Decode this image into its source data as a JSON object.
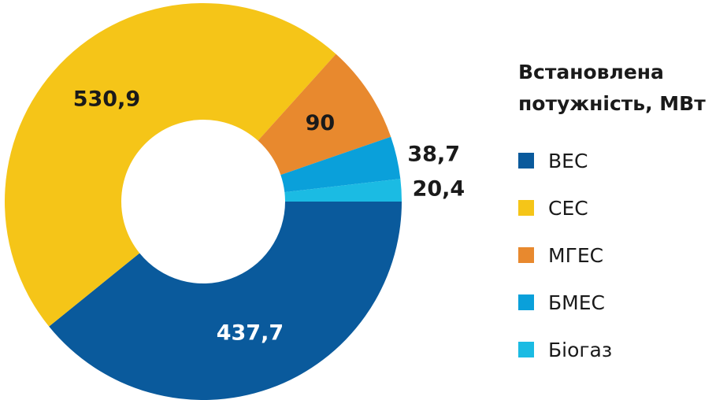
{
  "chart_data": {
    "type": "donut",
    "legend_title": "Встановлена потужність, МВт",
    "categories": [
      "ВЕС",
      "СЕС",
      "МГЕС",
      "БМЕС",
      "Біогаз"
    ],
    "values": [
      437.7,
      530.9,
      90,
      38.7,
      20.4
    ],
    "value_labels": [
      "437,7",
      "530,9",
      "90",
      "38,7",
      "20,4"
    ],
    "colors": [
      "#0a5a9c",
      "#f5c518",
      "#e8892e",
      "#0aa0da",
      "#1bbbe3"
    ],
    "label_colors": [
      "#ffffff",
      "#1a1a1a",
      "#1a1a1a",
      "#1a1a1a",
      "#1a1a1a"
    ],
    "legend": "right"
  }
}
